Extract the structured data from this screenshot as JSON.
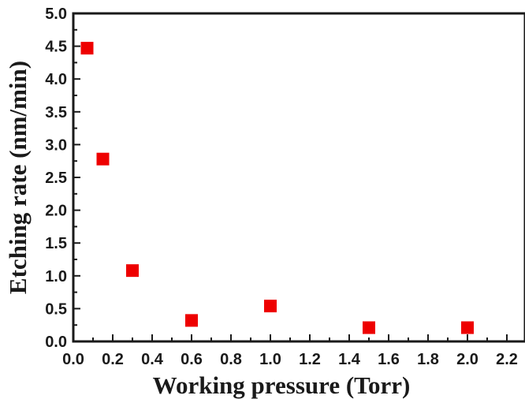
{
  "chart_data": {
    "type": "scatter",
    "title": "",
    "xlabel": "Working pressure (Torr)",
    "ylabel": "Etching rate (nm/min)",
    "xlim": [
      0.0,
      2.2
    ],
    "ylim": [
      0.0,
      5.0
    ],
    "x_ticks": [
      "0.0",
      "0.2",
      "0.4",
      "0.6",
      "0.8",
      "1.0",
      "1.2",
      "1.4",
      "1.6",
      "1.8",
      "2.0",
      "2.2"
    ],
    "y_ticks": [
      "0.0",
      "0.5",
      "1.0",
      "1.5",
      "2.0",
      "2.5",
      "3.0",
      "3.5",
      "4.0",
      "4.5",
      "5.0"
    ],
    "grid": false,
    "marker": "square",
    "marker_color": "#ee0000",
    "series": [
      {
        "points": [
          {
            "x": 0.07,
            "y": 4.47
          },
          {
            "x": 0.15,
            "y": 2.78
          },
          {
            "x": 0.3,
            "y": 1.08
          },
          {
            "x": 0.6,
            "y": 0.32
          },
          {
            "x": 1.0,
            "y": 0.54
          },
          {
            "x": 1.5,
            "y": 0.21
          },
          {
            "x": 2.0,
            "y": 0.21
          }
        ]
      }
    ]
  }
}
